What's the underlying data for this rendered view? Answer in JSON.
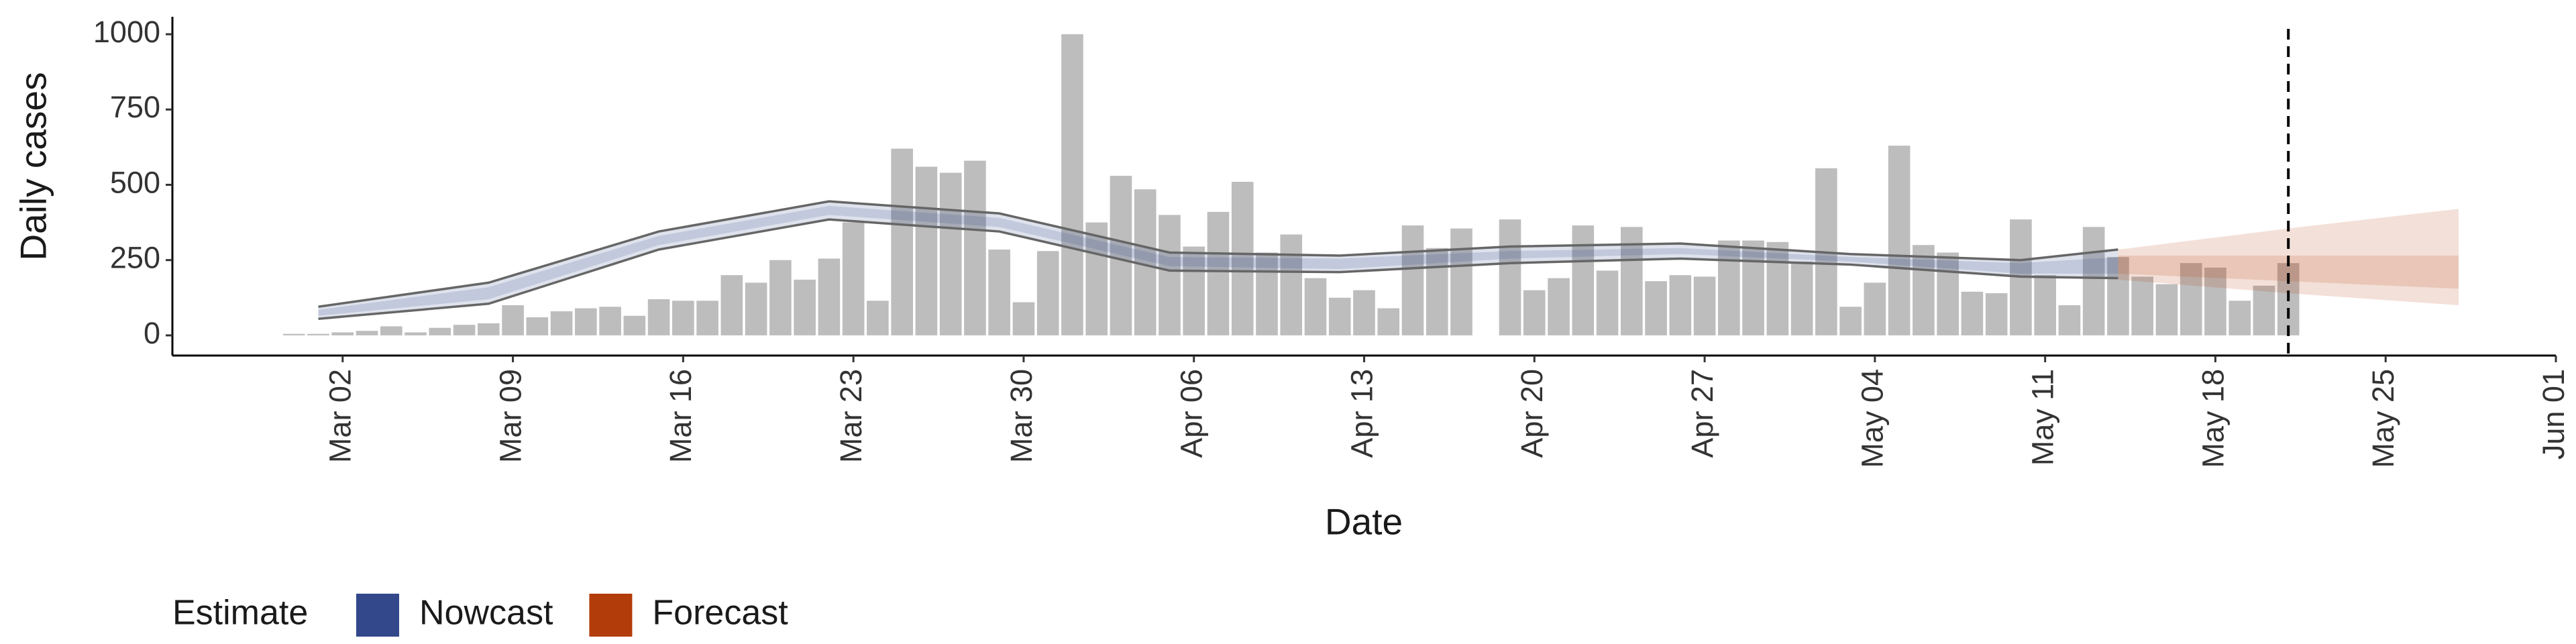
{
  "chart_data": {
    "type": "bar",
    "xlabel": "Date",
    "ylabel": "Daily cases",
    "color": "#bdbdbd",
    "x": [
      "Feb 29",
      "Mar 01",
      "Mar 02",
      "Mar 03",
      "Mar 04",
      "Mar 05",
      "Mar 06",
      "Mar 07",
      "Mar 08",
      "Mar 09",
      "Mar 10",
      "Mar 11",
      "Mar 12",
      "Mar 13",
      "Mar 14",
      "Mar 15",
      "Mar 16",
      "Mar 17",
      "Mar 18",
      "Mar 19",
      "Mar 20",
      "Mar 21",
      "Mar 22",
      "Mar 23",
      "Mar 24",
      "Mar 25",
      "Mar 26",
      "Mar 27",
      "Mar 28",
      "Mar 29",
      "Mar 30",
      "Mar 31",
      "Apr 01",
      "Apr 02",
      "Apr 03",
      "Apr 04",
      "Apr 05",
      "Apr 06",
      "Apr 07",
      "Apr 08",
      "Apr 09",
      "Apr 10",
      "Apr 11",
      "Apr 12",
      "Apr 13",
      "Apr 14",
      "Apr 15",
      "Apr 16",
      "Apr 17",
      "Apr 18",
      "Apr 19",
      "Apr 20",
      "Apr 21",
      "Apr 22",
      "Apr 23",
      "Apr 24",
      "Apr 25",
      "Apr 26",
      "Apr 27",
      "Apr 28",
      "Apr 29",
      "Apr 30",
      "May 01",
      "May 02",
      "May 03",
      "May 04",
      "May 05",
      "May 06",
      "May 07",
      "May 08",
      "May 09",
      "May 10",
      "May 11",
      "May 12",
      "May 13",
      "May 14",
      "May 15",
      "May 16",
      "May 17",
      "May 18",
      "May 19",
      "May 20",
      "May 21"
    ],
    "values": [
      5,
      5,
      10,
      15,
      30,
      10,
      25,
      35,
      40,
      100,
      60,
      80,
      90,
      95,
      65,
      120,
      115,
      115,
      200,
      175,
      250,
      185,
      255,
      375,
      115,
      620,
      560,
      540,
      580,
      285,
      110,
      280,
      1000,
      375,
      530,
      485,
      400,
      295,
      410,
      510,
      275,
      335,
      190,
      125,
      150,
      90,
      365,
      290,
      355,
      0,
      385,
      150,
      190,
      365,
      215,
      360,
      180,
      200,
      195,
      315,
      315,
      310,
      245,
      555,
      95,
      175,
      630,
      300,
      275,
      145,
      140,
      385,
      200,
      100,
      360,
      260,
      195,
      170,
      240,
      225,
      115,
      165,
      240
    ],
    "xlim": [
      "Feb 24",
      "Jun 01"
    ],
    "xticks": [
      "Mar 02",
      "Mar 09",
      "Mar 16",
      "Mar 23",
      "Mar 30",
      "Apr 06",
      "Apr 13",
      "Apr 20",
      "Apr 27",
      "May 04",
      "May 11",
      "May 18",
      "May 25",
      "Jun 01"
    ],
    "ylim": [
      -67,
      1058
    ],
    "yticks": [
      0,
      250,
      500,
      750,
      1000
    ],
    "grid": false,
    "vline": "May 21",
    "legend_title": "Estimate",
    "legend": "bottom-left",
    "series": [
      {
        "name": "Nowcast",
        "color": "#32488a",
        "outline": true,
        "x": [
          "Mar 01",
          "Mar 08",
          "Mar 15",
          "Mar 22",
          "Mar 29",
          "Apr 05",
          "Apr 12",
          "Apr 19",
          "Apr 26",
          "May 03",
          "May 10",
          "May 14"
        ],
        "upper90": [
          95,
          175,
          345,
          445,
          405,
          275,
          265,
          295,
          305,
          270,
          250,
          285
        ],
        "lower90": [
          55,
          105,
          285,
          385,
          345,
          215,
          210,
          240,
          255,
          235,
          195,
          190
        ],
        "upper50": [
          85,
          160,
          330,
          430,
          390,
          260,
          255,
          280,
          290,
          260,
          240,
          260
        ],
        "lower50": [
          65,
          120,
          300,
          400,
          360,
          230,
          220,
          255,
          270,
          245,
          205,
          205
        ]
      },
      {
        "name": "Forecast",
        "color": "#b33d0a",
        "outline": false,
        "x": [
          "May 14",
          "May 21",
          "May 28"
        ],
        "upper90": [
          285,
          355,
          420
        ],
        "lower90": [
          185,
          140,
          100
        ],
        "upper50": [
          265,
          265,
          265
        ],
        "lower50": [
          205,
          180,
          155
        ]
      }
    ]
  }
}
